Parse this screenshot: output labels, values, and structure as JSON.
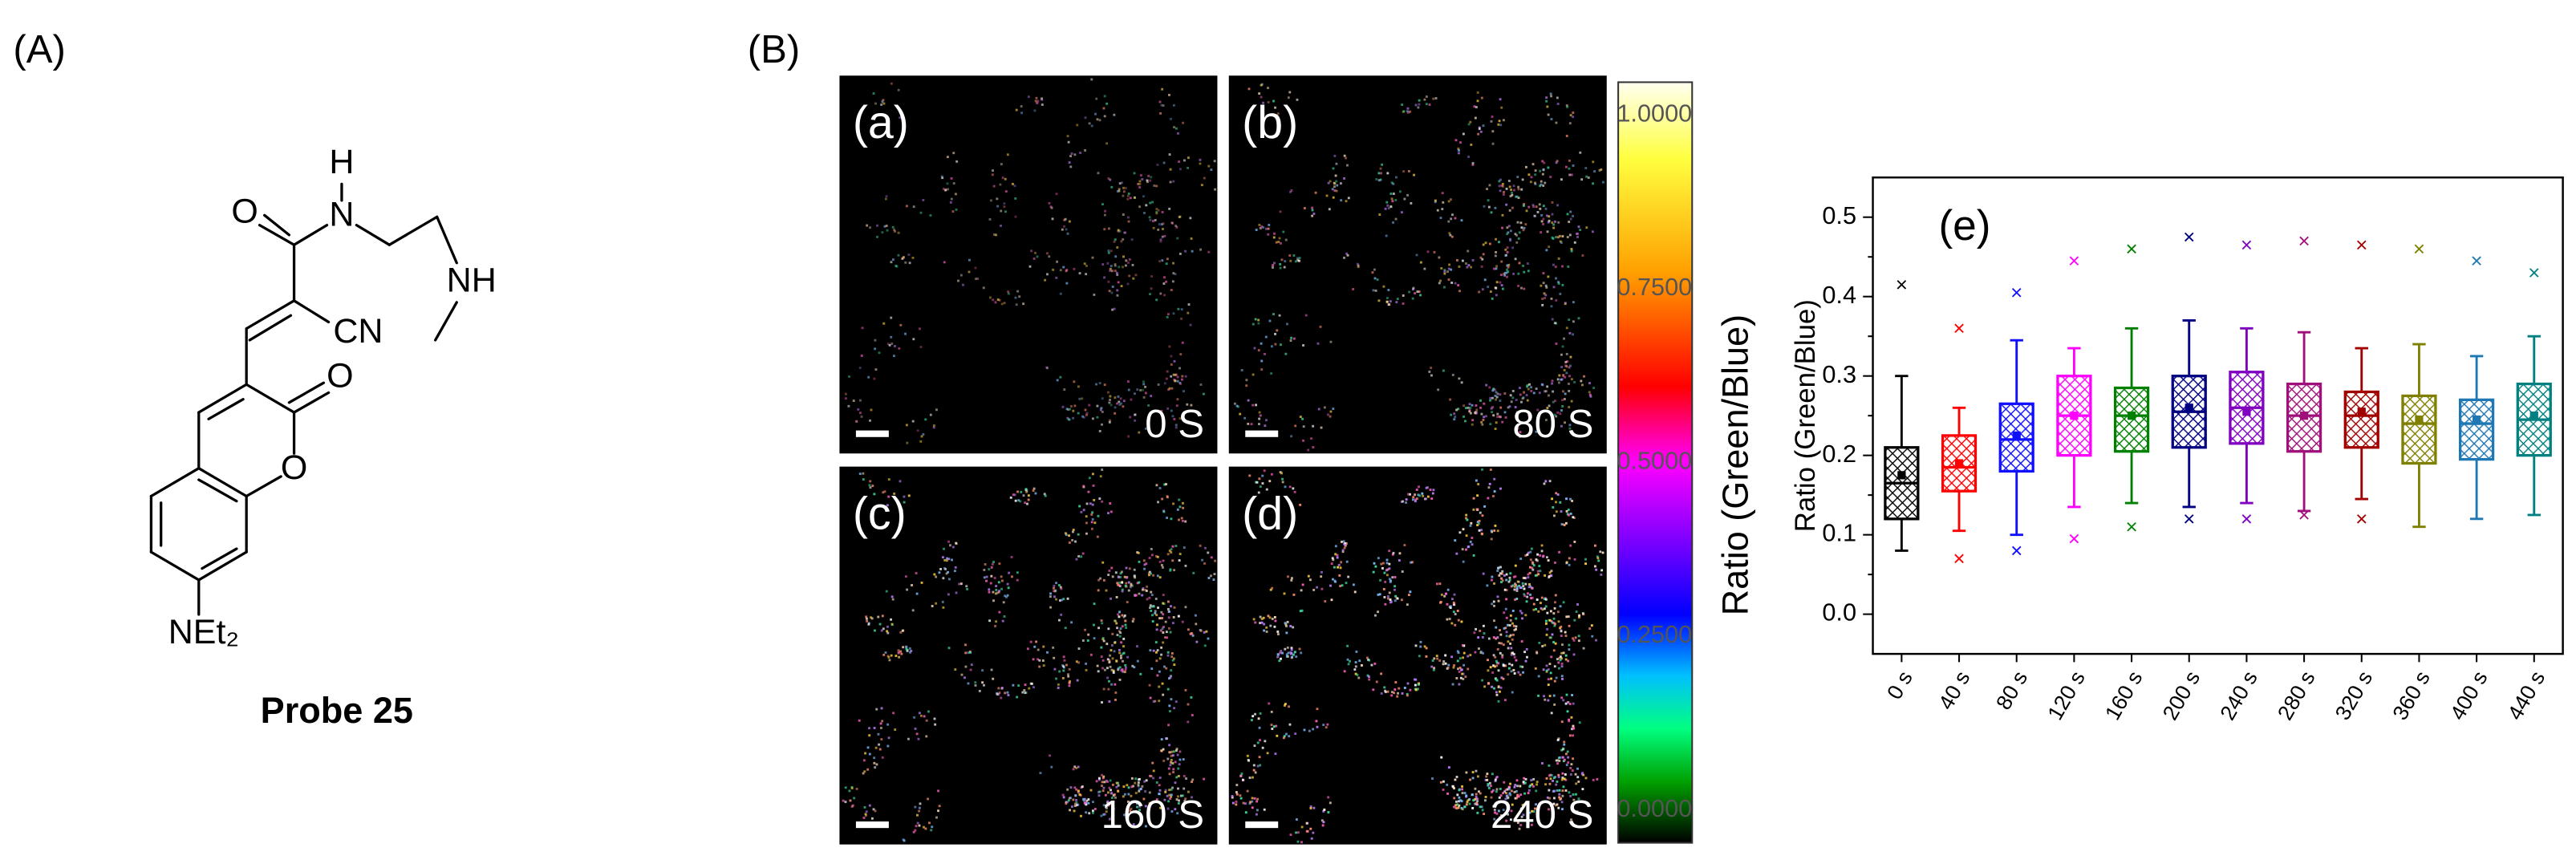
{
  "panel_a": {
    "label": "(A)",
    "atom_labels": [
      "O",
      "H",
      "N",
      "CN",
      "NH",
      "O",
      "O",
      "NEt₂"
    ],
    "caption": "Probe 25"
  },
  "panel_b": {
    "label": "(B)",
    "images": [
      {
        "label": "(a)",
        "time": "0 S"
      },
      {
        "label": "(b)",
        "time": "80 S"
      },
      {
        "label": "(c)",
        "time": "160 S"
      },
      {
        "label": "(d)",
        "time": "240 S"
      }
    ],
    "colorbar": {
      "ticks": [
        "1.0000",
        "0.7500",
        "0.5000",
        "0.2500",
        "0.0000"
      ],
      "label": "Ratio (Green/Blue)"
    }
  },
  "chart_data": {
    "type": "box",
    "panel_label": "(e)",
    "y_label": "Ratio (Green/Blue)",
    "categories": [
      "0 s",
      "40 s",
      "80 s",
      "120 s",
      "160 s",
      "200 s",
      "240 s",
      "280 s",
      "320 s",
      "360 s",
      "400 s",
      "440 s"
    ],
    "colors": [
      "#000000",
      "#ff0000",
      "#1010ff",
      "#ff00ff",
      "#008000",
      "#000080",
      "#8000c0",
      "#a0107a",
      "#a00000",
      "#808000",
      "#1f77b4",
      "#008080"
    ],
    "whisker_low": [
      0.08,
      0.105,
      0.1,
      0.135,
      0.14,
      0.135,
      0.14,
      0.13,
      0.145,
      0.11,
      0.12,
      0.125
    ],
    "q1": [
      0.12,
      0.155,
      0.18,
      0.2,
      0.205,
      0.21,
      0.215,
      0.205,
      0.21,
      0.19,
      0.195,
      0.2
    ],
    "median": [
      0.165,
      0.185,
      0.22,
      0.25,
      0.25,
      0.255,
      0.26,
      0.25,
      0.25,
      0.24,
      0.24,
      0.245
    ],
    "mean": [
      0.175,
      0.19,
      0.225,
      0.25,
      0.25,
      0.26,
      0.255,
      0.25,
      0.255,
      0.245,
      0.245,
      0.25
    ],
    "q3": [
      0.21,
      0.225,
      0.265,
      0.3,
      0.285,
      0.3,
      0.305,
      0.29,
      0.28,
      0.275,
      0.27,
      0.29
    ],
    "whisker_high": [
      0.3,
      0.26,
      0.345,
      0.335,
      0.36,
      0.37,
      0.36,
      0.355,
      0.335,
      0.34,
      0.325,
      0.35
    ],
    "outlier_high": [
      0.415,
      0.36,
      0.405,
      0.445,
      0.46,
      0.475,
      0.465,
      0.47,
      0.465,
      0.46,
      0.445,
      0.43
    ],
    "outlier_low": [
      null,
      0.07,
      0.08,
      0.095,
      0.11,
      0.12,
      0.12,
      0.125,
      0.12,
      null,
      null,
      null
    ],
    "ylim": [
      -0.05,
      0.55
    ],
    "yticks": [
      {
        "value": 0,
        "label": "0.0"
      },
      0.1,
      0.2,
      0.3,
      0.4,
      0.5
    ]
  }
}
